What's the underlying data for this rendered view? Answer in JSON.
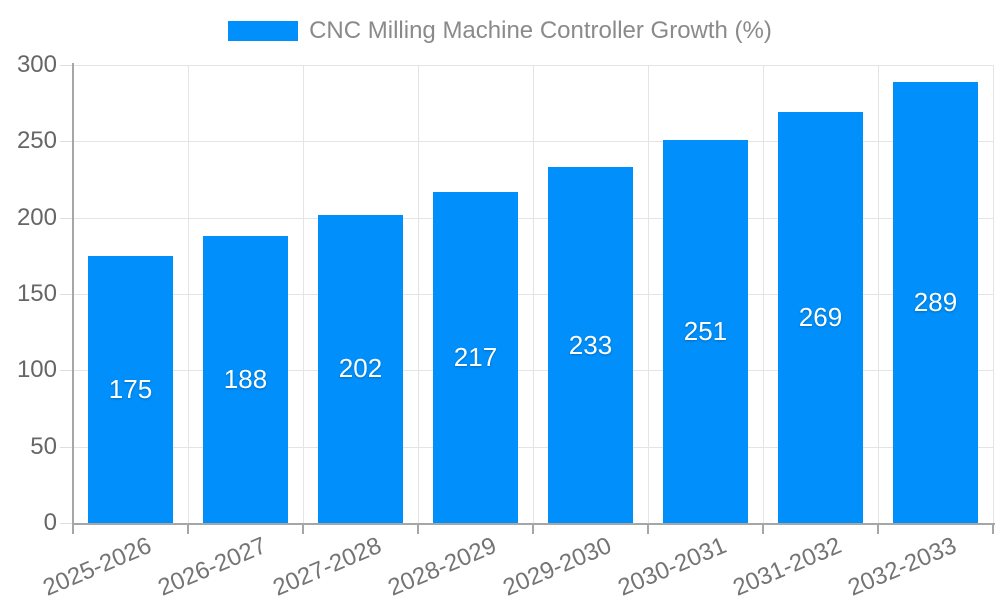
{
  "chart_data": {
    "type": "bar",
    "title": "CNC Milling Machine Controller Growth (%)",
    "legend": {
      "position": "top",
      "entries": [
        "CNC Milling Machine Controller Growth (%)"
      ]
    },
    "categories": [
      "2025-2026",
      "2026-2027",
      "2027-2028",
      "2028-2029",
      "2029-2030",
      "2030-2031",
      "2031-2032",
      "2032-2033"
    ],
    "values": [
      175,
      188,
      202,
      217,
      233,
      251,
      269,
      289
    ],
    "xlabel": "",
    "ylabel": "",
    "ylim": [
      0,
      300
    ],
    "yticks": [
      0,
      50,
      100,
      150,
      200,
      250,
      300
    ],
    "grid": true,
    "value_labels": "inside-center",
    "colors": {
      "bar": "#008FFB",
      "value_label": "#ffffff",
      "axis_line": "#a6a6a6",
      "gridline": "#e4e4e4",
      "tick_text": "#666666",
      "legend_text": "#8a8a8a"
    }
  }
}
